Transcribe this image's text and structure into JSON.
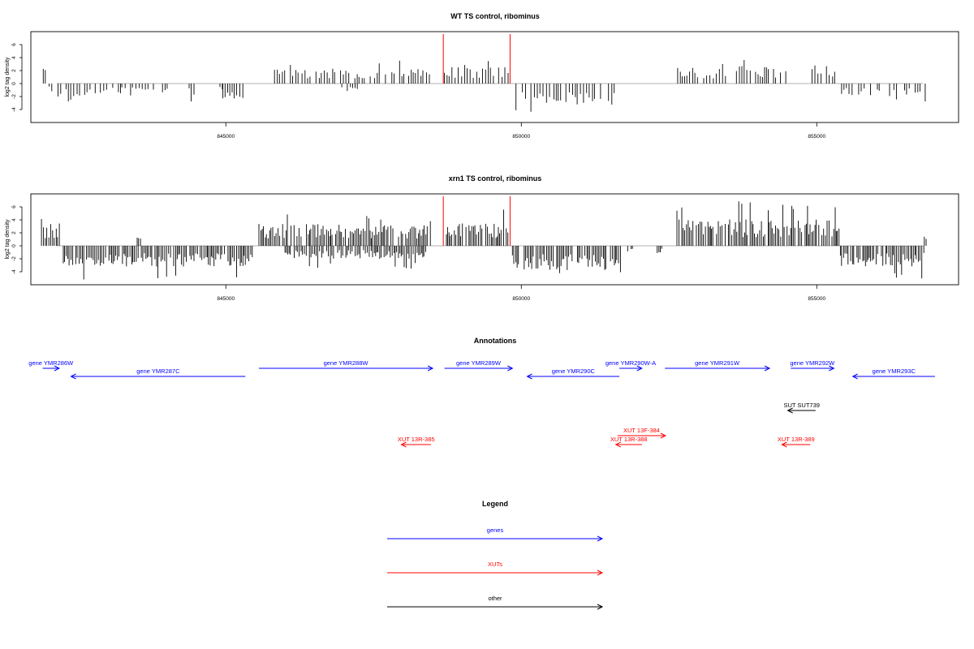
{
  "chart_data": [
    {
      "type": "bar",
      "title": "WT TS control, ribominus",
      "ylabel": "log2 tag density",
      "xlim": [
        841700,
        857400
      ],
      "ylim": [
        -6,
        8
      ],
      "yticks": [
        -4,
        -2,
        0,
        2,
        4,
        6
      ],
      "xticks": [
        845000,
        850000,
        855000
      ],
      "xtick_labels": [
        "845000",
        "850000",
        "855000"
      ],
      "grid": false,
      "markers_x": [
        848680,
        849810
      ],
      "marker_color": "#ff0000",
      "bar_color": "#000000",
      "profile": [
        {
          "x0": 841880,
          "x1": 842010,
          "polarity": "+",
          "amp": 2.2,
          "max": 2.9
        },
        {
          "x0": 842010,
          "x1": 842070,
          "polarity": "-",
          "amp": 0.9,
          "max": 1.2
        },
        {
          "x0": 842160,
          "x1": 842650,
          "polarity": "-",
          "amp": 1.9,
          "max": 2.9
        },
        {
          "x0": 842650,
          "x1": 843240,
          "polarity": "-",
          "amp": 1.2,
          "max": 4.4
        },
        {
          "x0": 843240,
          "x1": 843800,
          "polarity": "-",
          "amp": 1.1,
          "max": 2.0
        },
        {
          "x0": 843880,
          "x1": 844050,
          "polarity": "-",
          "amp": 1.3,
          "max": 1.7
        },
        {
          "x0": 844280,
          "x1": 844620,
          "polarity": "-",
          "amp": 1.6,
          "max": 3.3
        },
        {
          "x0": 844900,
          "x1": 844960,
          "polarity": "-",
          "amp": 0.8,
          "max": 1.0
        },
        {
          "x0": 844950,
          "x1": 845330,
          "polarity": "-",
          "amp": 1.7,
          "max": 3.6
        },
        {
          "x0": 845670,
          "x1": 848470,
          "polarity": "+",
          "amp": 1.7,
          "max": 3.6
        },
        {
          "x0": 846930,
          "x1": 847250,
          "polarity": "-",
          "amp": 1.0,
          "max": 2.5
        },
        {
          "x0": 848700,
          "x1": 849800,
          "polarity": "+",
          "amp": 1.9,
          "max": 3.6
        },
        {
          "x0": 849860,
          "x1": 851580,
          "polarity": "-",
          "amp": 2.4,
          "max": 4.6
        },
        {
          "x0": 851800,
          "x1": 851880,
          "polarity": "-",
          "amp": 0.7,
          "max": 0.9
        },
        {
          "x0": 852600,
          "x1": 853480,
          "polarity": "+",
          "amp": 1.8,
          "max": 3.3
        },
        {
          "x0": 853640,
          "x1": 854560,
          "polarity": "+",
          "amp": 2.0,
          "max": 3.9
        },
        {
          "x0": 854920,
          "x1": 855350,
          "polarity": "+",
          "amp": 2.1,
          "max": 5.0
        },
        {
          "x0": 855420,
          "x1": 856850,
          "polarity": "-",
          "amp": 1.5,
          "max": 2.9
        }
      ]
    },
    {
      "type": "bar",
      "title": "xrn1 TS control, ribominus",
      "ylabel": "log2 tag density",
      "xlim": [
        841700,
        857400
      ],
      "ylim": [
        -6,
        8
      ],
      "yticks": [
        -4,
        -2,
        0,
        2,
        4,
        6
      ],
      "xticks": [
        845000,
        850000,
        855000
      ],
      "xtick_labels": [
        "845000",
        "850000",
        "855000"
      ],
      "grid": false,
      "markers_x": [
        848680,
        849810
      ],
      "marker_color": "#ff0000",
      "bar_color": "#000000",
      "profile": [
        {
          "x0": 841880,
          "x1": 842200,
          "polarity": "+",
          "amp": 2.6,
          "max": 4.6
        },
        {
          "x0": 842250,
          "x1": 845480,
          "polarity": "-",
          "amp": 2.4,
          "max": 5.3
        },
        {
          "x0": 843500,
          "x1": 843560,
          "polarity": "+",
          "amp": 1.8,
          "max": 2.4
        },
        {
          "x0": 845560,
          "x1": 848470,
          "polarity": "+",
          "amp": 2.5,
          "max": 4.9
        },
        {
          "x0": 846000,
          "x1": 848400,
          "polarity": "-",
          "amp": 1.5,
          "max": 3.5
        },
        {
          "x0": 848700,
          "x1": 849800,
          "polarity": "+",
          "amp": 2.6,
          "max": 5.7
        },
        {
          "x0": 849850,
          "x1": 851700,
          "polarity": "-",
          "amp": 2.8,
          "max": 5.4
        },
        {
          "x0": 851800,
          "x1": 851900,
          "polarity": "-",
          "amp": 0.8,
          "max": 1.0
        },
        {
          "x0": 852300,
          "x1": 852380,
          "polarity": "-",
          "amp": 1.0,
          "max": 1.5
        },
        {
          "x0": 852600,
          "x1": 855400,
          "polarity": "+",
          "amp": 3.0,
          "max": 7.2
        },
        {
          "x0": 855400,
          "x1": 856820,
          "polarity": "-",
          "amp": 2.4,
          "max": 5.4
        },
        {
          "x0": 856820,
          "x1": 856880,
          "polarity": "+",
          "amp": 1.0,
          "max": 1.5
        }
      ]
    },
    {
      "type": "table",
      "title": "Annotations",
      "features": [
        {
          "label": "gene YMR286W",
          "kind": "gene",
          "strand": "+",
          "start": 841900,
          "end": 842180,
          "row": 0
        },
        {
          "label": "gene YMR287C",
          "kind": "gene",
          "strand": "-",
          "start": 842380,
          "end": 845330,
          "row": 1
        },
        {
          "label": "gene YMR288W",
          "kind": "gene",
          "strand": "+",
          "start": 845560,
          "end": 848500,
          "row": 0
        },
        {
          "label": "gene YMR289W",
          "kind": "gene",
          "strand": "+",
          "start": 848700,
          "end": 849850,
          "row": 0
        },
        {
          "label": "gene YMR290C",
          "kind": "gene",
          "strand": "-",
          "start": 850100,
          "end": 851660,
          "row": 1
        },
        {
          "label": "gene YMR290W-A",
          "kind": "gene",
          "strand": "+",
          "start": 851660,
          "end": 852040,
          "row": 0
        },
        {
          "label": "gene YMR291W",
          "kind": "gene",
          "strand": "+",
          "start": 852430,
          "end": 854200,
          "row": 0
        },
        {
          "label": "gene YMR292W",
          "kind": "gene",
          "strand": "+",
          "start": 854560,
          "end": 855290,
          "row": 0
        },
        {
          "label": "gene YMR293C",
          "kind": "gene",
          "strand": "-",
          "start": 855610,
          "end": 857000,
          "row": 1
        },
        {
          "label": "SUT SUT739",
          "kind": "other",
          "strand": "-",
          "start": 854510,
          "end": 854980,
          "row": 2
        },
        {
          "label": "XUT 13F-384",
          "kind": "XUT",
          "strand": "+",
          "start": 851630,
          "end": 852440,
          "row": 3
        },
        {
          "label": "XUT 13R-385",
          "kind": "XUT",
          "strand": "-",
          "start": 847970,
          "end": 848470,
          "row": 4
        },
        {
          "label": "XUT 13R-388",
          "kind": "XUT",
          "strand": "-",
          "start": 851600,
          "end": 852040,
          "row": 4
        },
        {
          "label": "XUT 13R-389",
          "kind": "XUT",
          "strand": "-",
          "start": 854410,
          "end": 854890,
          "row": 4
        }
      ]
    }
  ],
  "legend": {
    "title": "Legend",
    "items": [
      {
        "label": "genes",
        "color": "#0000ff"
      },
      {
        "label": "XUTs",
        "color": "#ff0000"
      },
      {
        "label": "other",
        "color": "#000000"
      }
    ]
  },
  "colors": {
    "gene": "#0000ff",
    "XUT": "#ff0000",
    "other": "#000000",
    "baseline": "#9a9a9a"
  }
}
